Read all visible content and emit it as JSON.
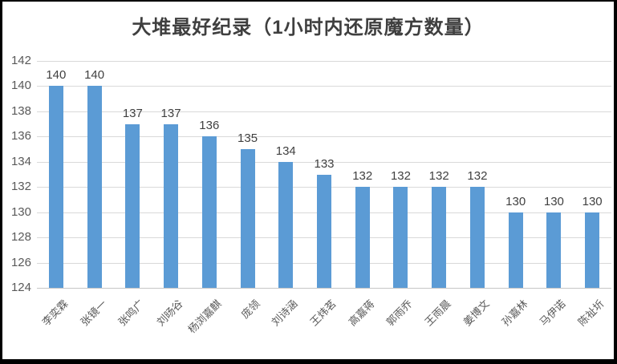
{
  "chart_data": {
    "type": "bar",
    "title": "大堆最好纪录（1小时内还原魔方数量）",
    "categories": [
      "李奕霖",
      "张镜一",
      "张鸣广",
      "刘旸谷",
      "杨浏嘉麒",
      "庞领",
      "刘诗涵",
      "王炜茗",
      "高嘉蒋",
      "郭雨乔",
      "王雨晨",
      "姜博文",
      "孙嘉林",
      "马伊诺",
      "陈祉圻"
    ],
    "values": [
      140,
      140,
      137,
      137,
      136,
      135,
      134,
      133,
      132,
      132,
      132,
      132,
      130,
      130,
      130
    ],
    "yticks": [
      124,
      126,
      128,
      130,
      132,
      134,
      136,
      138,
      140,
      142
    ],
    "ylim": [
      124,
      142
    ],
    "xlabel": "",
    "ylabel": "",
    "grid": true,
    "legend_position": "none",
    "data_labels": true,
    "bar_color": "#5B9BD5",
    "gridline_color": "#D9D9D9",
    "label_color": "#404040",
    "tick_color": "#595959"
  }
}
